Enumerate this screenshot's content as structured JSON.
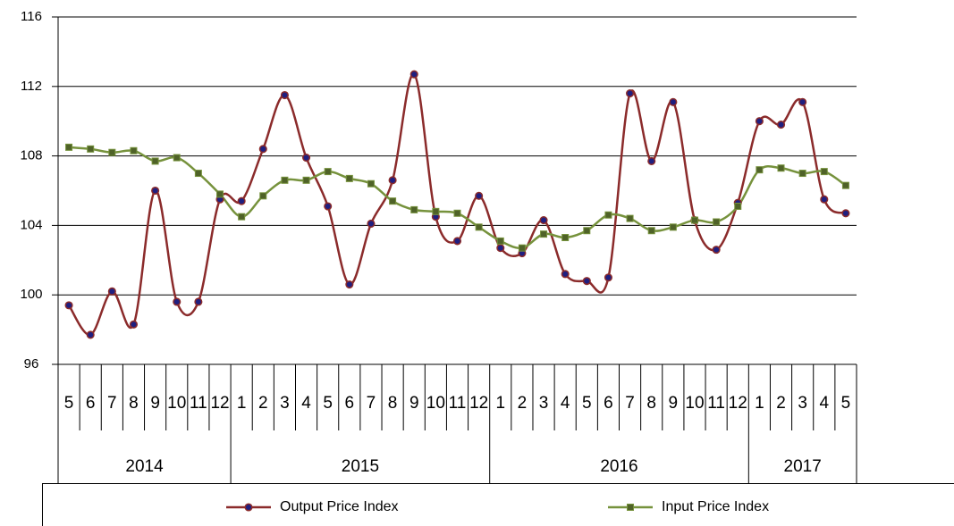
{
  "chart_data": {
    "type": "line",
    "category_groups": [
      {
        "label": "2014",
        "categories": [
          "5",
          "6",
          "7",
          "8",
          "9",
          "10",
          "11",
          "12"
        ]
      },
      {
        "label": "2015",
        "categories": [
          "1",
          "2",
          "3",
          "4",
          "5",
          "6",
          "7",
          "8",
          "9",
          "10",
          "11",
          "12"
        ]
      },
      {
        "label": "2016",
        "categories": [
          "1",
          "2",
          "3",
          "4",
          "5",
          "6",
          "7",
          "8",
          "9",
          "10",
          "11",
          "12"
        ]
      },
      {
        "label": "2017",
        "categories": [
          "1",
          "2",
          "3",
          "4",
          "5"
        ]
      }
    ],
    "series": [
      {
        "name": "Output Price Index",
        "color": "#8b2b2b",
        "marker_color": "#1f1f80",
        "marker": "circle",
        "values": [
          99.4,
          97.7,
          100.2,
          98.3,
          106.0,
          99.6,
          99.6,
          105.5,
          105.4,
          108.4,
          111.5,
          107.9,
          105.1,
          100.6,
          104.1,
          106.6,
          112.7,
          104.5,
          103.1,
          105.7,
          102.7,
          102.4,
          104.3,
          101.2,
          100.8,
          101.0,
          111.6,
          107.7,
          111.1,
          104.3,
          102.6,
          105.3,
          110.0,
          109.8,
          111.1,
          105.5,
          104.7
        ]
      },
      {
        "name": "Input Price Index",
        "color": "#76923c",
        "marker_color": "#4f6228",
        "marker": "square",
        "values": [
          108.5,
          108.4,
          108.2,
          108.3,
          107.7,
          107.9,
          107.0,
          105.8,
          104.5,
          105.7,
          106.6,
          106.6,
          107.1,
          106.7,
          106.4,
          105.4,
          104.9,
          104.8,
          104.7,
          103.9,
          103.1,
          102.7,
          103.5,
          103.3,
          103.7,
          104.6,
          104.4,
          103.7,
          103.9,
          104.3,
          104.2,
          105.1,
          107.2,
          107.3,
          107.0,
          107.1,
          106.3
        ]
      }
    ],
    "ylim": [
      96,
      116
    ],
    "yticks": [
      96,
      100,
      104,
      108,
      112,
      116
    ],
    "grid": true
  }
}
